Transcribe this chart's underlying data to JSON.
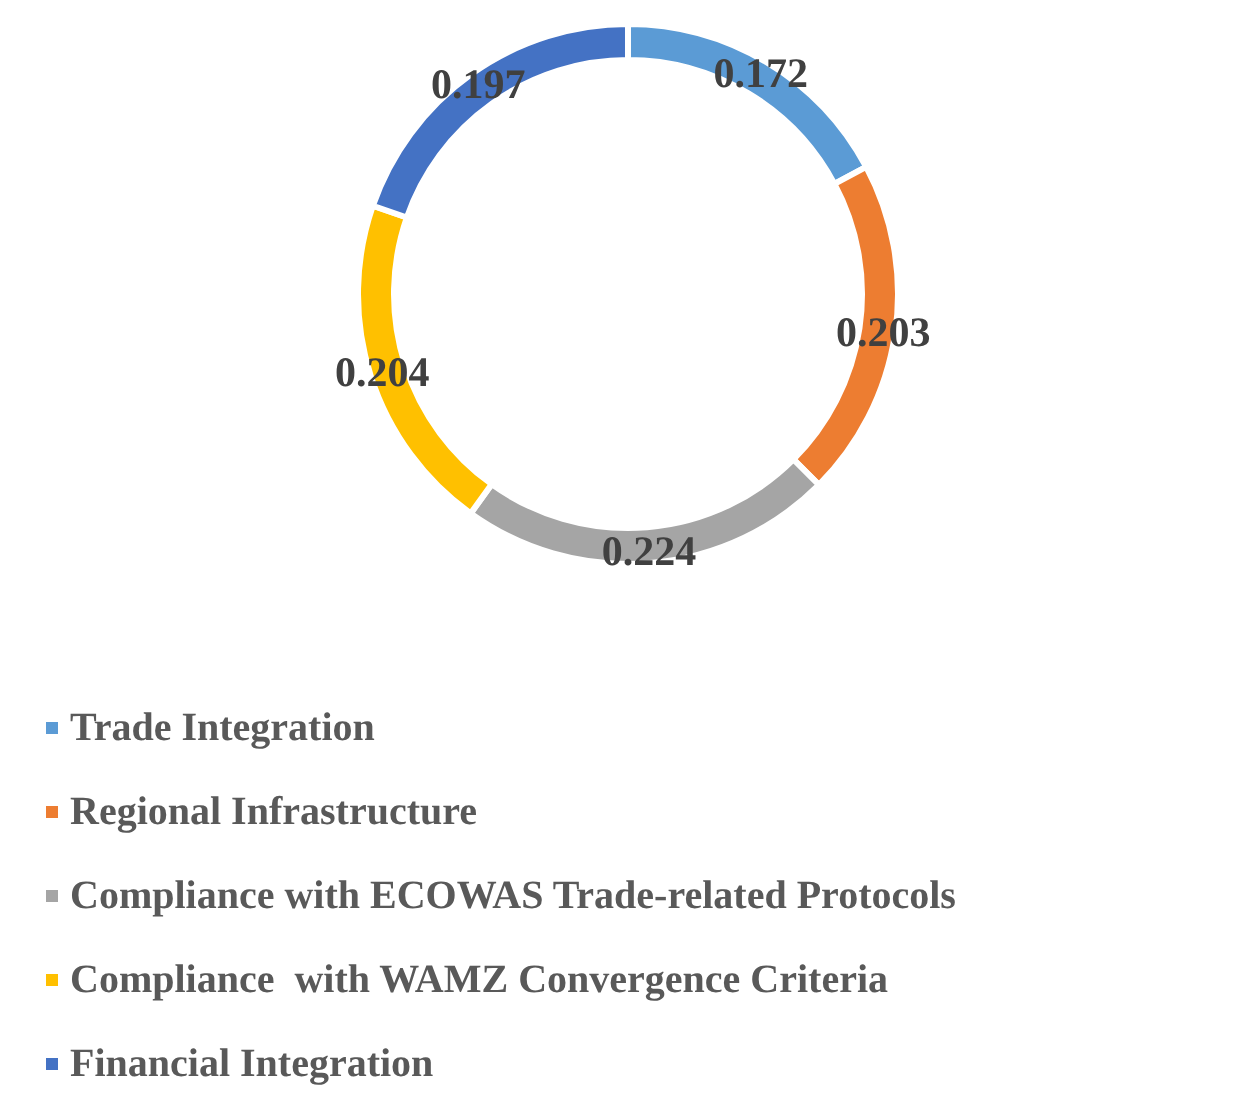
{
  "chart_data": {
    "type": "donut",
    "categories": [
      "Trade Integration",
      "Regional Infrastructure",
      "Compliance with ECOWAS Trade-related Protocols",
      "Compliance  with WAMZ Convergence Criteria",
      "Financial Integration"
    ],
    "values": [
      0.172,
      0.203,
      0.224,
      0.204,
      0.197
    ],
    "colors": [
      "#5b9bd5",
      "#ed7d31",
      "#a5a5a5",
      "#ffc000",
      "#4472c4"
    ],
    "data_labels": true,
    "legend": "bottom"
  }
}
